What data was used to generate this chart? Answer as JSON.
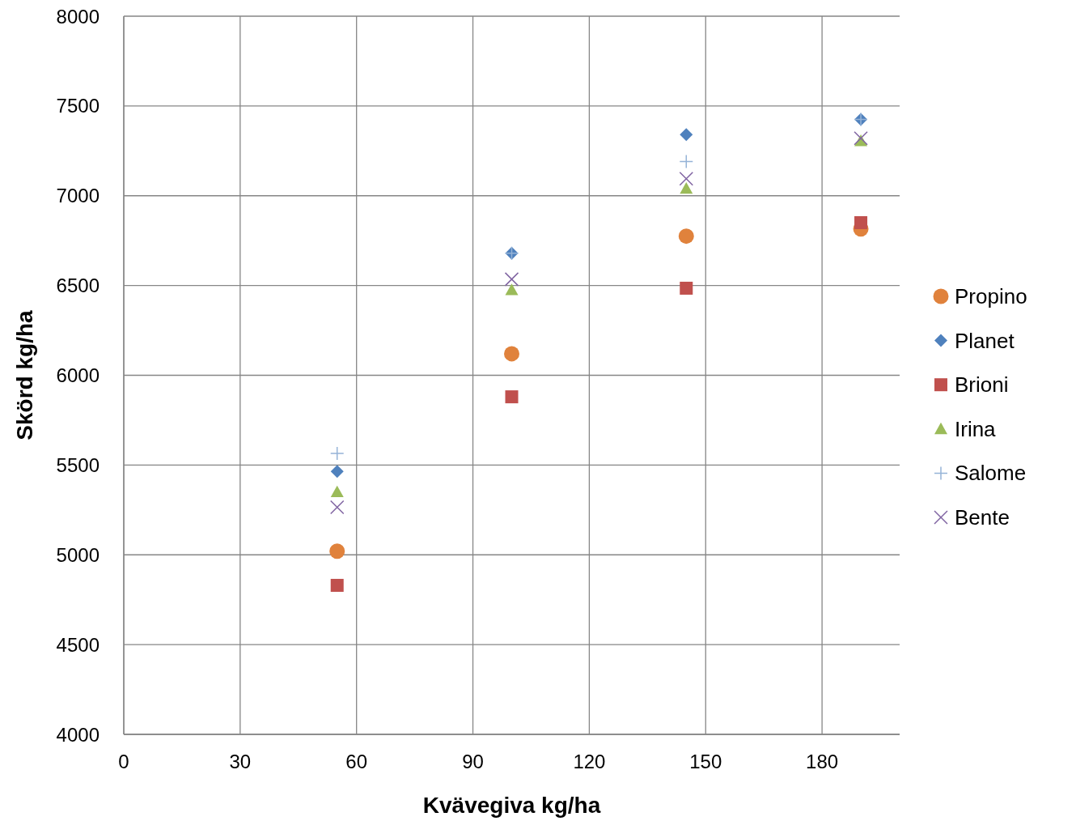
{
  "chart_data": {
    "type": "scatter",
    "xlabel": "Kvävegiva kg/ha",
    "ylabel": "Skörd kg/ha",
    "xlim": [
      0,
      200
    ],
    "xticks": [
      0,
      30,
      60,
      90,
      120,
      150,
      180
    ],
    "ylim": [
      4000,
      8000
    ],
    "yticks": [
      4000,
      4500,
      5000,
      5500,
      6000,
      6500,
      7000,
      7500,
      8000
    ],
    "grid": true,
    "legend": "right",
    "x": [
      55,
      100,
      145,
      190
    ],
    "series": [
      {
        "name": "Propino",
        "color": "#e0823c",
        "marker": "circle",
        "values": [
          5020,
          6120,
          6775,
          6815
        ]
      },
      {
        "name": "Planet",
        "color": "#4f81bd",
        "marker": "diamond",
        "values": [
          5465,
          6680,
          7340,
          7425
        ]
      },
      {
        "name": "Brioni",
        "color": "#c0504d",
        "marker": "square",
        "values": [
          4830,
          5880,
          6485,
          6850
        ]
      },
      {
        "name": "Irina",
        "color": "#9bbb59",
        "marker": "triangle",
        "values": [
          5350,
          6475,
          7040,
          7305
        ]
      },
      {
        "name": "Salome",
        "color": "#95b3d7",
        "marker": "plus",
        "values": [
          5565,
          6680,
          7190,
          7425
        ]
      },
      {
        "name": "Bente",
        "color": "#8064a2",
        "marker": "cross",
        "values": [
          5265,
          6535,
          7095,
          7320
        ]
      }
    ]
  }
}
